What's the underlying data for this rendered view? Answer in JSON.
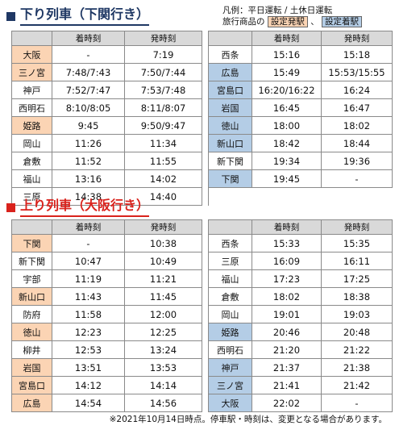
{
  "down": {
    "title": "下り列車（下関行き）",
    "headers": {
      "arrive": "着時刻",
      "depart": "発時刻"
    },
    "left": [
      {
        "station": "大阪",
        "type": "dep",
        "arrive": "-",
        "depart": "7:19"
      },
      {
        "station": "三ノ宮",
        "type": "dep",
        "arrive": "7:48/7:43",
        "depart": "7:50/7:44"
      },
      {
        "station": "神戸",
        "type": "",
        "arrive": "7:52/7:47",
        "depart": "7:53/7:48"
      },
      {
        "station": "西明石",
        "type": "",
        "arrive": "8:10/8:05",
        "depart": "8:11/8:07"
      },
      {
        "station": "姫路",
        "type": "dep",
        "arrive": "9:45",
        "depart": "9:50/9:47"
      },
      {
        "station": "岡山",
        "type": "",
        "arrive": "11:26",
        "depart": "11:34"
      },
      {
        "station": "倉敷",
        "type": "",
        "arrive": "11:52",
        "depart": "11:55"
      },
      {
        "station": "福山",
        "type": "",
        "arrive": "13:16",
        "depart": "14:02"
      },
      {
        "station": "三原",
        "type": "",
        "arrive": "14:38",
        "depart": "14:40"
      }
    ],
    "right": [
      {
        "station": "西条",
        "type": "",
        "arrive": "15:16",
        "depart": "15:18"
      },
      {
        "station": "広島",
        "type": "arr",
        "arrive": "15:49",
        "depart": "15:53/15:55"
      },
      {
        "station": "宮島口",
        "type": "arr",
        "arrive": "16:20/16:22",
        "depart": "16:24"
      },
      {
        "station": "岩国",
        "type": "arr",
        "arrive": "16:45",
        "depart": "16:47"
      },
      {
        "station": "徳山",
        "type": "arr",
        "arrive": "18:00",
        "depart": "18:02"
      },
      {
        "station": "新山口",
        "type": "arr",
        "arrive": "18:42",
        "depart": "18:44"
      },
      {
        "station": "新下関",
        "type": "",
        "arrive": "19:34",
        "depart": "19:36"
      },
      {
        "station": "下関",
        "type": "arr",
        "arrive": "19:45",
        "depart": "-"
      }
    ]
  },
  "up": {
    "title": "上り列車（大阪行き）",
    "headers": {
      "arrive": "着時刻",
      "depart": "発時刻"
    },
    "left": [
      {
        "station": "下関",
        "type": "dep",
        "arrive": "-",
        "depart": "10:38"
      },
      {
        "station": "新下関",
        "type": "",
        "arrive": "10:47",
        "depart": "10:49"
      },
      {
        "station": "宇部",
        "type": "",
        "arrive": "11:19",
        "depart": "11:21"
      },
      {
        "station": "新山口",
        "type": "dep",
        "arrive": "11:43",
        "depart": "11:45"
      },
      {
        "station": "防府",
        "type": "",
        "arrive": "11:58",
        "depart": "12:00"
      },
      {
        "station": "徳山",
        "type": "dep",
        "arrive": "12:23",
        "depart": "12:25"
      },
      {
        "station": "柳井",
        "type": "",
        "arrive": "12:53",
        "depart": "13:24"
      },
      {
        "station": "岩国",
        "type": "dep",
        "arrive": "13:51",
        "depart": "13:53"
      },
      {
        "station": "宮島口",
        "type": "dep",
        "arrive": "14:12",
        "depart": "14:14"
      },
      {
        "station": "広島",
        "type": "dep",
        "arrive": "14:54",
        "depart": "14:56"
      }
    ],
    "right": [
      {
        "station": "西条",
        "type": "",
        "arrive": "15:33",
        "depart": "15:35"
      },
      {
        "station": "三原",
        "type": "",
        "arrive": "16:09",
        "depart": "16:11"
      },
      {
        "station": "福山",
        "type": "",
        "arrive": "17:23",
        "depart": "17:25"
      },
      {
        "station": "倉敷",
        "type": "",
        "arrive": "18:02",
        "depart": "18:38"
      },
      {
        "station": "岡山",
        "type": "",
        "arrive": "19:01",
        "depart": "19:03"
      },
      {
        "station": "姫路",
        "type": "arr",
        "arrive": "20:46",
        "depart": "20:48"
      },
      {
        "station": "西明石",
        "type": "",
        "arrive": "21:20",
        "depart": "21:22"
      },
      {
        "station": "神戸",
        "type": "arr",
        "arrive": "21:37",
        "depart": "21:38"
      },
      {
        "station": "三ノ宮",
        "type": "arr",
        "arrive": "21:41",
        "depart": "21:42"
      },
      {
        "station": "大阪",
        "type": "arr",
        "arrive": "22:02",
        "depart": "-"
      }
    ]
  },
  "legend": {
    "line1": "凡例：平日運転 / 土休日運転",
    "line2_prefix": "旅行商品の",
    "departure_station": "設定発駅",
    "separator": "、",
    "arrival_station": "設定着駅"
  },
  "colors": {
    "departure": "#fbd4b4",
    "arrival": "#b4cde6",
    "down_title": "#1f3864",
    "up_title": "#d9221c"
  },
  "note": "※2021年10月14日時点。停車駅・時刻は、変更となる場合があります。"
}
